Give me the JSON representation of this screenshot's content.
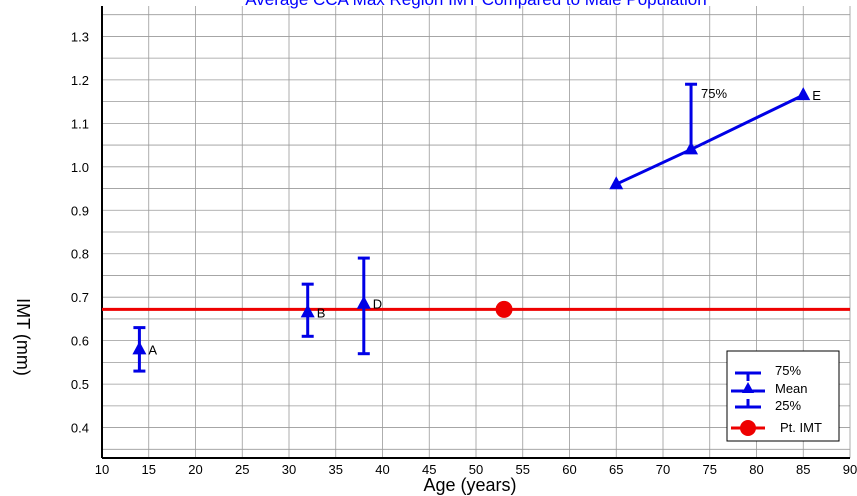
{
  "chart_data": {
    "type": "scatter",
    "title": "Average CCA Max Region IMT Compared to Male Population",
    "xlabel": "Age (years)",
    "ylabel": "IMT (mm)",
    "xlim": [
      10,
      90
    ],
    "ylim": [
      0.33,
      1.37
    ],
    "x_ticks": [
      10,
      15,
      20,
      25,
      30,
      35,
      40,
      45,
      50,
      55,
      60,
      65,
      70,
      75,
      80,
      85,
      90
    ],
    "x_tick_labels": [
      "10",
      "15",
      "20",
      "25",
      "30",
      "35",
      "40",
      "45",
      "50",
      "55",
      "60",
      "65",
      "70",
      "75",
      "80",
      "85",
      "90"
    ],
    "y_ticks": [
      0.4,
      0.5,
      0.6,
      0.7,
      0.8,
      0.9,
      1.0,
      1.1,
      1.2,
      1.3
    ],
    "y_tick_labels": [
      "0.4",
      "0.5",
      "0.6",
      "0.7",
      "0.8",
      "0.9",
      "1.0",
      "1.1",
      "1.2",
      "1.3"
    ],
    "grid": true,
    "population_points": [
      {
        "label": "A",
        "x": 14,
        "mean": 0.58,
        "p25": 0.53,
        "p75": 0.63
      },
      {
        "label": "B",
        "x": 32,
        "mean": 0.665,
        "p25": 0.61,
        "p75": 0.73
      },
      {
        "label": "D",
        "x": 38,
        "mean": 0.685,
        "p25": 0.57,
        "p75": 0.79
      },
      {
        "label": "",
        "x": 65,
        "mean": 0.96
      },
      {
        "label": "",
        "x": 73,
        "mean": 1.04,
        "p75": 1.19
      },
      {
        "label": "E",
        "x": 85,
        "mean": 1.165
      }
    ],
    "trend_line": [
      [
        65,
        0.96
      ],
      [
        73,
        1.04
      ],
      [
        85,
        1.165
      ]
    ],
    "inline_annotation": {
      "text": "75%",
      "x": 73,
      "y": 1.17
    },
    "reference_line": {
      "y": 0.672,
      "x_from": 10,
      "x_to": 90
    },
    "patient_point": {
      "x": 53,
      "y": 0.672
    },
    "legend": {
      "placement": "bottom-right",
      "items": [
        "75%",
        "Mean",
        "25%",
        "Pt. IMT"
      ]
    },
    "colors": {
      "series": "#0000e6",
      "reference": "#ee0000",
      "grid": "#9a9a9a",
      "axis": "#000000",
      "title": "#0000ff"
    }
  }
}
